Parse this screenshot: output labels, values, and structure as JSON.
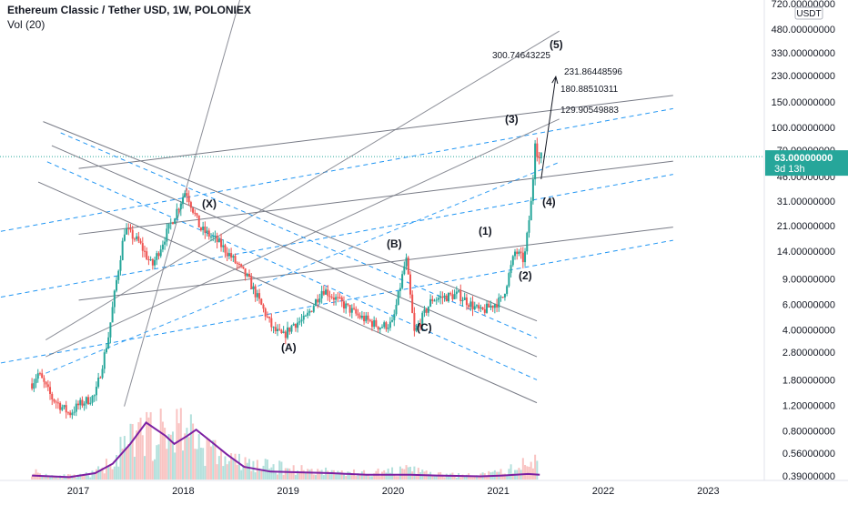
{
  "header": {
    "title": "Ethereum Classic / Tether USD, 1W, POLONIEX",
    "volume_label": "Vol (20)"
  },
  "colors": {
    "up": "#26a69a",
    "down": "#ef5350",
    "channel_solid": "#787b86",
    "channel_dashed": "#2196f3",
    "volume_ma": "#7b1fa2",
    "price_tag": "#26a69a",
    "axis_text": "#131722"
  },
  "chart_data": {
    "type": "candlestick",
    "scale": "log",
    "currency_badge": "USDT",
    "ylim": [
      0.37,
      760
    ],
    "y_ticks": [
      "720.00000000",
      "480.00000000",
      "330.00000000",
      "230.00000000",
      "150.00000000",
      "100.00000000",
      "70.00000000",
      "46.00000000",
      "31.00000000",
      "21.00000000",
      "14.00000000",
      "9.00000000",
      "6.00000000",
      "4.00000000",
      "2.80000000",
      "1.80000000",
      "1.20000000",
      "0.80000000",
      "0.56000000",
      "0.39000000"
    ],
    "x_ticks": [
      "2017",
      "2018",
      "2019",
      "2020",
      "2021",
      "2022",
      "2023"
    ],
    "last_price": {
      "label": "63.00000000",
      "countdown": "3d 13h",
      "value": 63
    },
    "price_path": [
      [
        "2016-07-24",
        1.7
      ],
      [
        "2016-08-15",
        2.0
      ],
      [
        "2016-10-01",
        1.35
      ],
      [
        "2016-12-01",
        1.05
      ],
      [
        "2017-01-01",
        1.2
      ],
      [
        "2017-03-01",
        1.4
      ],
      [
        "2017-04-15",
        3.5
      ],
      [
        "2017-05-15",
        9
      ],
      [
        "2017-06-12",
        20
      ],
      [
        "2017-08-01",
        16
      ],
      [
        "2017-09-15",
        11
      ],
      [
        "2017-11-01",
        18
      ],
      [
        "2018-01-10",
        37
      ],
      [
        "2018-03-01",
        20
      ],
      [
        "2018-04-20",
        17
      ],
      [
        "2018-06-01",
        14
      ],
      [
        "2018-08-15",
        9
      ],
      [
        "2018-11-10",
        4.0
      ],
      [
        "2018-12-15",
        3.6
      ],
      [
        "2019-01-20",
        4.4
      ],
      [
        "2019-03-01",
        4.7
      ],
      [
        "2019-05-01",
        7.7
      ],
      [
        "2019-07-01",
        6.2
      ],
      [
        "2019-09-01",
        5.0
      ],
      [
        "2019-11-15",
        4.2
      ],
      [
        "2019-12-30",
        4.4
      ],
      [
        "2020-02-15",
        12.5
      ],
      [
        "2020-03-15",
        3.8
      ],
      [
        "2020-05-15",
        6.5
      ],
      [
        "2020-08-15",
        7.0
      ],
      [
        "2020-11-01",
        5.3
      ],
      [
        "2021-01-15",
        6.5
      ],
      [
        "2021-03-01",
        14
      ],
      [
        "2021-04-01",
        12
      ],
      [
        "2021-05-01",
        38
      ],
      [
        "2021-05-06",
        92
      ],
      [
        "2021-05-20",
        60
      ],
      [
        "2021-05-30",
        63
      ]
    ],
    "volume": [
      [
        "2016-07-24",
        0.1
      ],
      [
        "2016-10-01",
        0.05
      ],
      [
        "2017-01-01",
        0.04
      ],
      [
        "2017-03-01",
        0.08
      ],
      [
        "2017-05-01",
        0.25
      ],
      [
        "2017-07-01",
        0.45
      ],
      [
        "2017-09-01",
        0.6
      ],
      [
        "2017-11-01",
        0.55
      ],
      [
        "2018-01-01",
        0.7
      ],
      [
        "2018-03-01",
        0.45
      ],
      [
        "2018-06-01",
        0.25
      ],
      [
        "2018-09-01",
        0.18
      ],
      [
        "2018-12-01",
        0.15
      ],
      [
        "2019-03-01",
        0.12
      ],
      [
        "2019-06-01",
        0.1
      ],
      [
        "2019-09-01",
        0.08
      ],
      [
        "2020-01-01",
        0.1
      ],
      [
        "2020-03-01",
        0.12
      ],
      [
        "2020-06-01",
        0.06
      ],
      [
        "2020-10-01",
        0.05
      ],
      [
        "2021-01-01",
        0.08
      ],
      [
        "2021-04-01",
        0.18
      ],
      [
        "2021-05-20",
        0.25
      ]
    ],
    "volume_ma": [
      [
        "2016-07-24",
        0.05
      ],
      [
        "2016-12-01",
        0.03
      ],
      [
        "2017-03-01",
        0.08
      ],
      [
        "2017-05-01",
        0.2
      ],
      [
        "2017-07-01",
        0.45
      ],
      [
        "2017-08-25",
        0.72
      ],
      [
        "2017-11-01",
        0.55
      ],
      [
        "2017-12-01",
        0.45
      ],
      [
        "2018-01-15",
        0.55
      ],
      [
        "2018-02-15",
        0.63
      ],
      [
        "2018-04-01",
        0.5
      ],
      [
        "2018-06-01",
        0.32
      ],
      [
        "2018-08-01",
        0.16
      ],
      [
        "2018-11-01",
        0.1
      ],
      [
        "2019-03-01",
        0.09
      ],
      [
        "2019-06-01",
        0.08
      ],
      [
        "2019-10-01",
        0.06
      ],
      [
        "2020-03-01",
        0.06
      ],
      [
        "2020-06-01",
        0.05
      ],
      [
        "2020-11-01",
        0.04
      ],
      [
        "2021-01-15",
        0.05
      ],
      [
        "2021-04-15",
        0.07
      ],
      [
        "2021-05-25",
        0.06
      ]
    ],
    "channels": [
      {
        "style": "solid",
        "a": [
          "2017-06-10",
          20
        ],
        "b": [
          "2021-03-01",
          43
        ],
        "offset_up": 2.85,
        "offset_dn": 0.35,
        "extend_to": "2022-09-01"
      },
      {
        "style": "dashed",
        "a": [
          "2016-08-15",
          7.5
        ],
        "b": [
          "2021-03-01",
          30
        ],
        "offset_up": 2.85,
        "offset_dn": 0.35,
        "extend_to": "2022-09-01"
      },
      {
        "style": "solid",
        "a": [
          "2017-06-10",
          1.18
        ],
        "b": [
          "2018-01-10",
          37
        ],
        "kind": "ray",
        "extend_to": "2021-08-01"
      },
      {
        "style": "solid",
        "a": [
          "2016-09-10",
          3.4
        ],
        "b": [
          "2018-01-10",
          13.0
        ],
        "kind": "ray",
        "extend_to": "2021-08-01"
      },
      {
        "style": "solid",
        "a": [
          "2016-09-10",
          2.6
        ],
        "b": [
          "2018-01-10",
          7.3
        ],
        "kind": "ray",
        "extend_to": "2021-08-01"
      },
      {
        "style": "dashed",
        "a": [
          "2016-09-10",
          2.0
        ],
        "b": [
          "2018-01-10",
          5.0
        ],
        "kind": "ray",
        "extend_to": "2021-08-01"
      }
    ],
    "downtrend": [
      {
        "style": "solid",
        "a": [
          "2016-09-01",
          110
        ],
        "b": [
          "2021-05-15",
          4.6
        ]
      },
      {
        "style": "solid",
        "a": [
          "2016-10-01",
          75
        ],
        "b": [
          "2021-05-15",
          2.6
        ]
      },
      {
        "style": "solid",
        "a": [
          "2016-08-15",
          42
        ],
        "b": [
          "2021-05-15",
          1.25
        ]
      },
      {
        "style": "dashed",
        "a": [
          "2016-11-01",
          92
        ],
        "b": [
          "2021-05-15",
          3.5
        ]
      },
      {
        "style": "dashed",
        "a": [
          "2016-09-15",
          58
        ],
        "b": [
          "2021-05-15",
          1.8
        ]
      }
    ],
    "wave_labels": [
      {
        "text": "(X)",
        "x": "2018-03-01",
        "y": 30
      },
      {
        "text": "(A)",
        "x": "2019-01-01",
        "y": 2.6
      },
      {
        "text": "(B)",
        "x": "2020-02-01",
        "y": 17
      },
      {
        "text": "(C)",
        "x": "2020-04-01",
        "y": 4.6
      },
      {
        "text": "(1)",
        "x": "2021-01-10",
        "y": 19
      },
      {
        "text": "(2)",
        "x": "2021-04-10",
        "y": 10
      },
      {
        "text": "(3)",
        "x": "2021-02-01",
        "y": 110
      },
      {
        "text": "(4)",
        "x": "2021-06-20",
        "y": 33
      },
      {
        "text": "(5)",
        "x": "2021-06-20",
        "y": 400
      }
    ],
    "targets": [
      "300.74643225",
      "231.86448596",
      "180.88510311",
      "129.90549883"
    ],
    "target_values": [
      300.74643225,
      231.86448596,
      180.88510311,
      129.90549883
    ],
    "projection": {
      "from": [
        "2021-05-30",
        44
      ],
      "to": [
        "2021-07-20",
        225
      ]
    }
  }
}
